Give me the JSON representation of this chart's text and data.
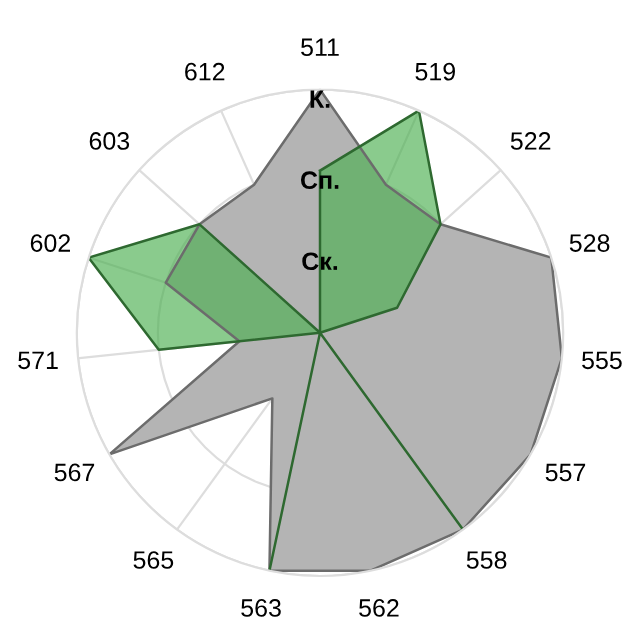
{
  "chart_data": {
    "type": "radar",
    "categories": [
      "511",
      "519",
      "522",
      "528",
      "555",
      "557",
      "558",
      "562",
      "563",
      "565",
      "567",
      "571",
      "602",
      "603",
      "612"
    ],
    "ylim": [
      0,
      3
    ],
    "yticks": [
      {
        "value": 1,
        "label": "Ск."
      },
      {
        "value": 2,
        "label": "Сп."
      },
      {
        "value": 3,
        "label": "К."
      }
    ],
    "grid": true,
    "series": [
      {
        "color": "#b4b4b4",
        "values": [
          3,
          2,
          2,
          3,
          3,
          3,
          3,
          3,
          3,
          1,
          3,
          1,
          2,
          2,
          2
        ]
      },
      {
        "color": "#4caf50",
        "values": [
          2,
          3,
          2,
          1,
          0,
          0,
          3,
          0,
          3,
          0,
          0,
          2,
          3,
          2,
          0
        ]
      }
    ]
  }
}
